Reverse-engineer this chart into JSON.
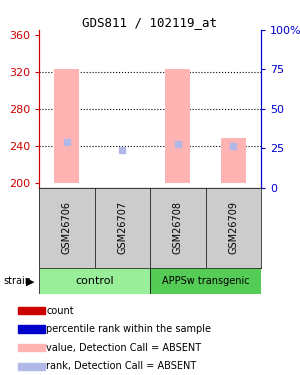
{
  "title": "GDS811 / 102119_at",
  "samples": [
    "GSM26706",
    "GSM26707",
    "GSM26708",
    "GSM26709"
  ],
  "group_labels": [
    "control",
    "APPSw transgenic"
  ],
  "ylim_left": [
    195,
    365
  ],
  "ylim_right": [
    0,
    100
  ],
  "yticks_left": [
    200,
    240,
    280,
    320,
    360
  ],
  "yticks_right": [
    0,
    25,
    50,
    75,
    100
  ],
  "ytick_labels_right": [
    "0",
    "25",
    "50",
    "75",
    "100%"
  ],
  "bar_values": [
    323,
    200,
    323,
    248
  ],
  "bar_base": 200,
  "bar_color": "#ffb3b3",
  "rank_markers": [
    244,
    236,
    242,
    240
  ],
  "rank_marker_color": "#b0b8e8",
  "dotted_lines": [
    240,
    280,
    320
  ],
  "left_axis_color": "#cc0000",
  "right_axis_color": "#0000cc",
  "sample_box_color": "#cccccc",
  "group_box_color_control": "#99ee99",
  "group_box_color_transgenic": "#55cc55",
  "legend_items": [
    {
      "color": "#cc0000",
      "label": "count"
    },
    {
      "color": "#0000cc",
      "label": "percentile rank within the sample"
    },
    {
      "color": "#ffb3b3",
      "label": "value, Detection Call = ABSENT"
    },
    {
      "color": "#b0b8e8",
      "label": "rank, Detection Call = ABSENT"
    }
  ],
  "bar_width": 0.45,
  "x_positions": [
    0.5,
    1.5,
    2.5,
    3.5
  ]
}
